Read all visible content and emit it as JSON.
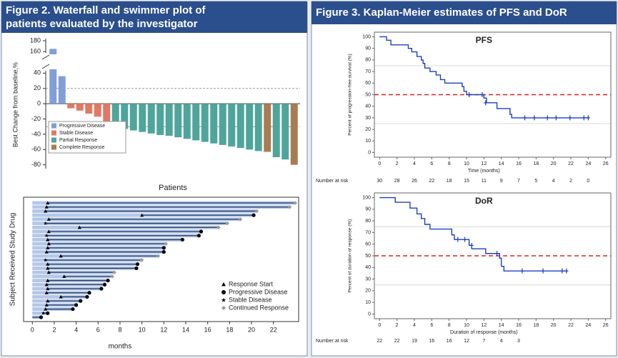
{
  "panels": [
    {
      "title": "Figure 2. Waterfall and swimmer plot of patients evaluated by the investigator"
    },
    {
      "title": "Figure 3. Kaplan-Meier estimates of  PFS and  DoR"
    }
  ],
  "chart_data": [
    {
      "type": "waterfall",
      "y_label": "Best Change from baseline,%",
      "x_label": "Patients",
      "ylim": [
        -85,
        180
      ],
      "ybreak": [
        45,
        155
      ],
      "yticks": [
        -80,
        -60,
        -40,
        -20,
        0,
        20,
        40,
        160,
        180
      ],
      "reference_lines": [
        20,
        -30
      ],
      "legend": "lower left",
      "series": [
        {
          "name": "Progressive Disease",
          "color": "#7f9fd6",
          "values": [
            165,
            36,
            null,
            null,
            null,
            null,
            null,
            null,
            null,
            null,
            null,
            null,
            null,
            null,
            null,
            null,
            null,
            null,
            null,
            null,
            null,
            null,
            null,
            null,
            null,
            null,
            null,
            null
          ]
        },
        {
          "name": "Stable Disease",
          "color": "#e07a63",
          "values": [
            null,
            null,
            -6,
            -9,
            -13,
            -17,
            -26,
            null,
            null,
            null,
            null,
            null,
            null,
            null,
            null,
            null,
            null,
            null,
            null,
            null,
            null,
            null,
            null,
            null,
            null,
            null,
            null,
            null
          ]
        },
        {
          "name": "Partial Response",
          "color": "#4fa59b",
          "values": [
            null,
            null,
            null,
            null,
            null,
            null,
            null,
            -31,
            -33,
            -35,
            -37,
            -39,
            -41,
            -42,
            -44,
            -46,
            -48,
            -50,
            -52,
            -54,
            -56,
            -58,
            -60,
            -62,
            null,
            -70,
            -73,
            null
          ]
        },
        {
          "name": "Complete Response",
          "color": "#a87c52",
          "values": [
            null,
            null,
            null,
            null,
            null,
            null,
            null,
            null,
            null,
            null,
            null,
            null,
            null,
            null,
            null,
            null,
            null,
            null,
            null,
            null,
            null,
            null,
            null,
            null,
            -63,
            null,
            null,
            -80
          ]
        }
      ]
    },
    {
      "type": "swimmer",
      "y_label": "Subject Received Study Drug",
      "x_label": "months",
      "xlim": [
        -0.8,
        24.3
      ],
      "xticks": [
        0,
        2,
        4,
        6,
        8,
        10,
        12,
        14,
        16,
        18,
        20,
        22
      ],
      "bar_color": "#b4c7e7",
      "line_color": "#1f3864",
      "legend": "lower right",
      "durations": [
        24.0,
        23.5,
        20.5,
        20.2,
        19.0,
        17.8,
        17.0,
        15.4,
        15.2,
        13.7,
        12.2,
        12.0,
        12.0,
        11.5,
        10.0,
        9.6,
        9.5,
        7.5,
        7.3,
        6.9,
        6.6,
        6.3,
        5.2,
        5.0,
        4.4,
        4.0,
        3.7,
        1.4,
        0.8
      ],
      "series": [
        {
          "name": "Response Start",
          "marker": "triangle",
          "color": "#000000",
          "values": [
            1.4,
            1.3,
            1.2,
            10.0,
            1.5,
            null,
            4.3,
            1.5,
            null,
            1.4,
            1.5,
            1.4,
            1.3,
            2.6,
            null,
            1.4,
            1.4,
            1.5,
            2.9,
            1.4,
            1.3,
            1.4,
            1.3,
            2.6,
            1.4,
            1.3,
            1.2,
            null,
            null
          ]
        },
        {
          "name": "Progressive Disease",
          "marker": "circle",
          "color": "#000000",
          "values": [
            null,
            null,
            null,
            20.2,
            null,
            null,
            null,
            15.4,
            15.2,
            13.7,
            null,
            12.0,
            12.0,
            null,
            null,
            9.6,
            9.5,
            null,
            null,
            6.9,
            6.6,
            6.3,
            5.2,
            5.0,
            4.4,
            4.0,
            3.7,
            1.4,
            0.8
          ]
        },
        {
          "name": "Stable Disease",
          "marker": "star",
          "color": "#000000",
          "values": [
            null,
            null,
            null,
            null,
            null,
            1.2,
            null,
            null,
            1.3,
            null,
            null,
            null,
            null,
            null,
            1.2,
            null,
            null,
            null,
            null,
            null,
            null,
            null,
            null,
            null,
            null,
            null,
            null,
            1.0,
            null
          ]
        },
        {
          "name": "Continued Response",
          "marker": "diamond",
          "color": "#999999",
          "values": [
            24.0,
            23.5,
            20.5,
            null,
            19.0,
            17.8,
            17.0,
            null,
            null,
            null,
            12.2,
            null,
            null,
            11.5,
            10.0,
            null,
            null,
            7.5,
            7.3,
            null,
            null,
            null,
            null,
            null,
            null,
            null,
            null,
            null,
            null
          ]
        }
      ]
    },
    {
      "type": "km",
      "title": "PFS",
      "y_label": "Percent of progression-free survival (%)",
      "x_label": "Time (months)",
      "xlim": [
        -0.6,
        26.6
      ],
      "ylim": [
        -4,
        104
      ],
      "xticks": [
        0,
        2,
        4,
        6,
        8,
        10,
        12,
        14,
        16,
        18,
        20,
        22,
        24,
        26
      ],
      "yticks": [
        0,
        10,
        20,
        30,
        40,
        50,
        60,
        70,
        80,
        90,
        100
      ],
      "ygrid": [
        25,
        75
      ],
      "reference_lines": [
        50
      ],
      "color": "#1f3fbf",
      "x": [
        0,
        0.8,
        1.3,
        3.3,
        3.7,
        4.3,
        4.8,
        5.0,
        5.2,
        5.8,
        6.5,
        7.0,
        7.5,
        9.5,
        9.7,
        10.0,
        12.0,
        12.3,
        13.5,
        15.0,
        15.2,
        24.0
      ],
      "values": [
        100,
        97,
        93,
        90,
        87,
        83,
        80,
        77,
        73,
        70,
        67,
        63,
        60,
        57,
        53,
        50,
        47,
        43,
        38,
        33,
        30,
        30
      ],
      "censored": {
        "x": [
          10.3,
          11.8,
          12.2,
          16.7,
          17.8,
          19.3,
          20.3,
          21.9,
          23.5,
          24.0
        ],
        "values": [
          50,
          50,
          43,
          30,
          30,
          30,
          30,
          30,
          30,
          30
        ]
      },
      "risk_label": "Number at risk",
      "at_risk": {
        "x": [
          0,
          2,
          4,
          6,
          8,
          10,
          12,
          14,
          16,
          18,
          20,
          22,
          24
        ],
        "values": [
          30,
          28,
          26,
          22,
          18,
          15,
          11,
          9,
          7,
          5,
          4,
          2,
          0
        ]
      }
    },
    {
      "type": "km",
      "title": "DoR",
      "y_label": "Percent of duration of response (%)",
      "x_label": "Duration of response (months)",
      "xlim": [
        -0.6,
        26.6
      ],
      "ylim": [
        -4,
        104
      ],
      "xticks": [
        0,
        2,
        4,
        6,
        8,
        10,
        12,
        14,
        16,
        18,
        20,
        22,
        24,
        26
      ],
      "yticks": [
        0,
        10,
        20,
        30,
        40,
        50,
        60,
        70,
        80,
        90,
        100
      ],
      "ygrid": [
        25,
        75
      ],
      "reference_lines": [
        50
      ],
      "color": "#1f3fbf",
      "x": [
        0,
        1.8,
        3.5,
        4.3,
        4.8,
        5.2,
        5.8,
        8.3,
        8.6,
        10.3,
        10.6,
        12.2,
        13.8,
        14.0,
        14.3,
        21.6
      ],
      "values": [
        100,
        96,
        91,
        86,
        82,
        77,
        73,
        68,
        64,
        59,
        56,
        52,
        48,
        41,
        37,
        37
      ],
      "censored": {
        "x": [
          9.0,
          9.8,
          10.6,
          13.5,
          16.4,
          18.8,
          21.0,
          21.5
        ],
        "values": [
          64,
          64,
          59,
          52,
          37,
          37,
          37,
          37
        ]
      },
      "risk_label": "Number at risk",
      "at_risk": {
        "x": [
          0,
          2,
          4,
          6,
          8,
          10,
          12,
          14,
          16
        ],
        "values": [
          22,
          22,
          19,
          16,
          16,
          12,
          7,
          4,
          3
        ]
      }
    }
  ]
}
